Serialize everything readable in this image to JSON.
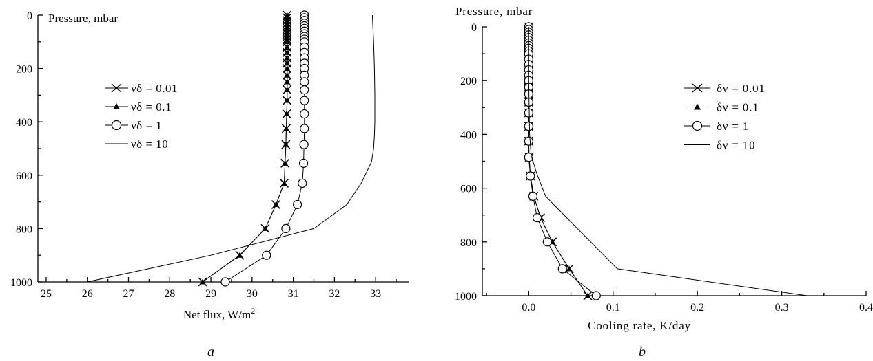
{
  "chart_data": [
    {
      "type": "line",
      "panel_label": "a",
      "ylabel": "Pressure, mbar",
      "xlabel": "Net flux, W/m",
      "xlabel_sup": "2",
      "xlim": [
        24.8,
        33.8
      ],
      "ylim": [
        0,
        1000
      ],
      "y_inverted": true,
      "xticks": [
        25,
        26,
        27,
        28,
        29,
        30,
        31,
        32,
        33
      ],
      "yticks": [
        0,
        200,
        400,
        600,
        800,
        1000
      ],
      "legend_position": "upper-left",
      "series": [
        {
          "name": "νδ = 0.01",
          "marker": "x",
          "x": [
            30.85,
            30.85,
            30.85,
            30.85,
            30.85,
            30.85,
            30.85,
            30.85,
            30.85,
            30.85,
            30.85,
            30.85,
            30.85,
            30.85,
            30.85,
            30.85,
            30.85,
            30.85,
            30.85,
            30.85,
            30.84,
            30.83,
            30.82,
            30.8,
            30.78,
            30.58,
            30.32,
            29.7,
            28.8
          ],
          "y": [
            0,
            10,
            20,
            30,
            40,
            50,
            60,
            70,
            80,
            90,
            100,
            120,
            140,
            160,
            180,
            200,
            225,
            250,
            280,
            320,
            370,
            425,
            485,
            555,
            630,
            710,
            800,
            900,
            1000
          ]
        },
        {
          "name": "νδ = 0.1",
          "marker": "filled-triangle",
          "x": [
            30.85,
            30.85,
            30.85,
            30.85,
            30.85,
            30.85,
            30.85,
            30.85,
            30.85,
            30.85,
            30.85,
            30.85,
            30.85,
            30.85,
            30.85,
            30.85,
            30.85,
            30.85,
            30.85,
            30.85,
            30.84,
            30.83,
            30.82,
            30.8,
            30.78,
            30.58,
            30.32,
            29.7,
            28.8
          ],
          "y": [
            0,
            10,
            20,
            30,
            40,
            50,
            60,
            70,
            80,
            90,
            100,
            120,
            140,
            160,
            180,
            200,
            225,
            250,
            280,
            320,
            370,
            425,
            485,
            555,
            630,
            710,
            800,
            900,
            1000
          ]
        },
        {
          "name": "νδ = 1",
          "marker": "open-circle",
          "x": [
            31.27,
            31.27,
            31.27,
            31.27,
            31.27,
            31.27,
            31.27,
            31.27,
            31.27,
            31.27,
            31.27,
            31.27,
            31.27,
            31.27,
            31.27,
            31.27,
            31.27,
            31.27,
            31.27,
            31.27,
            31.27,
            31.27,
            31.26,
            31.25,
            31.22,
            31.1,
            30.82,
            30.35,
            29.35
          ],
          "y": [
            0,
            10,
            20,
            30,
            40,
            50,
            60,
            70,
            80,
            90,
            100,
            120,
            140,
            160,
            180,
            200,
            225,
            250,
            280,
            320,
            370,
            425,
            485,
            555,
            630,
            710,
            800,
            900,
            1000
          ]
        },
        {
          "name": "νδ = 10",
          "marker": "none",
          "x": [
            32.92,
            32.95,
            32.97,
            32.98,
            32.98,
            32.97,
            32.95,
            32.9,
            32.65,
            32.3,
            31.5,
            29.0,
            26.0
          ],
          "y": [
            0,
            100,
            200,
            300,
            400,
            450,
            500,
            550,
            630,
            710,
            800,
            900,
            1000
          ]
        }
      ]
    },
    {
      "type": "line",
      "panel_label": "b",
      "ylabel": "Pressure, mbar",
      "xlabel": "Cooling rate, K/day",
      "xlim": [
        -0.055,
        0.4
      ],
      "ylim": [
        0,
        1000
      ],
      "y_inverted": true,
      "xticks": [
        0.0,
        0.1,
        0.2,
        0.3,
        0.4
      ],
      "xtick_labels": [
        "0.0",
        "0.1",
        "0.2",
        "0.3",
        "0.4"
      ],
      "yticks": [
        0,
        200,
        400,
        600,
        800,
        1000
      ],
      "legend_position": "upper-right",
      "series": [
        {
          "name": "δν = 0.01",
          "marker": "x",
          "x": [
            0,
            0,
            0,
            0,
            0,
            0,
            0,
            0,
            0,
            0,
            0,
            0,
            0,
            0,
            0,
            0,
            0,
            0,
            0,
            0,
            0,
            0,
            0.0005,
            0.002,
            0.006,
            0.014,
            0.028,
            0.048,
            0.07
          ],
          "y": [
            0,
            10,
            20,
            30,
            40,
            50,
            60,
            70,
            80,
            90,
            100,
            120,
            140,
            160,
            180,
            200,
            225,
            250,
            280,
            320,
            370,
            425,
            485,
            555,
            630,
            710,
            800,
            900,
            1000
          ]
        },
        {
          "name": "δν = 0.1",
          "marker": "filled-triangle",
          "x": [
            0,
            0,
            0,
            0,
            0,
            0,
            0,
            0,
            0,
            0,
            0,
            0,
            0,
            0,
            0,
            0,
            0,
            0,
            0,
            0,
            0,
            0,
            0.0005,
            0.002,
            0.006,
            0.014,
            0.028,
            0.048,
            0.07
          ],
          "y": [
            0,
            10,
            20,
            30,
            40,
            50,
            60,
            70,
            80,
            90,
            100,
            120,
            140,
            160,
            180,
            200,
            225,
            250,
            280,
            320,
            370,
            425,
            485,
            555,
            630,
            710,
            800,
            900,
            1000
          ]
        },
        {
          "name": "δν = 1",
          "marker": "open-circle",
          "x": [
            0,
            0,
            0,
            0,
            0,
            0,
            0,
            0,
            0,
            0,
            0,
            0,
            0,
            0,
            0,
            0,
            0,
            0,
            0,
            0,
            0,
            0,
            0,
            0.002,
            0.005,
            0.01,
            0.022,
            0.04,
            0.08
          ],
          "y": [
            0,
            10,
            20,
            30,
            40,
            50,
            60,
            70,
            80,
            90,
            100,
            120,
            140,
            160,
            180,
            200,
            225,
            250,
            280,
            320,
            370,
            425,
            485,
            555,
            630,
            710,
            800,
            900,
            1000
          ]
        },
        {
          "name": "δν = 10",
          "marker": "none",
          "x": [
            0,
            0,
            0.001,
            0.003,
            0.01,
            0.02,
            0.045,
            0.105,
            0.33
          ],
          "y": [
            0,
            200,
            400,
            480,
            550,
            630,
            710,
            900,
            1000
          ]
        }
      ]
    }
  ]
}
